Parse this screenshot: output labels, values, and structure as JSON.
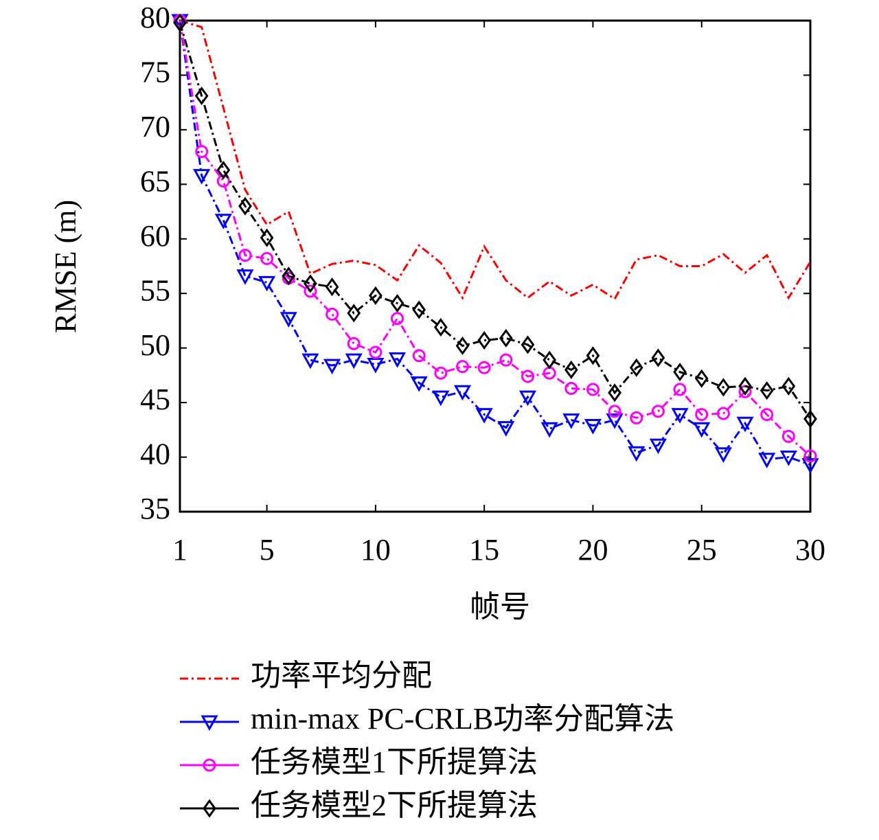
{
  "chart_data": {
    "type": "line",
    "y_label": "RMSE (m)",
    "x_label": "帧号",
    "x": [
      1,
      2,
      3,
      4,
      5,
      6,
      7,
      8,
      9,
      10,
      11,
      12,
      13,
      14,
      15,
      16,
      17,
      18,
      19,
      20,
      21,
      22,
      23,
      24,
      25,
      26,
      27,
      28,
      29,
      30
    ],
    "xlim": [
      1,
      30
    ],
    "xticks": [
      1,
      5,
      10,
      15,
      20,
      25,
      30
    ],
    "ylim": [
      35,
      80
    ],
    "yticks": [
      35,
      40,
      45,
      50,
      55,
      60,
      65,
      70,
      75,
      80
    ],
    "legend": "bottom",
    "series": [
      {
        "name": "功率平均分配",
        "color": "#ff0000",
        "marker": "none",
        "values": [
          80,
          79.4,
          72,
          64.5,
          61.3,
          62.5,
          56.8,
          57.7,
          58,
          57.6,
          56.2,
          59.4,
          57.8,
          54.6,
          59.3,
          56.2,
          54.6,
          56.1,
          54.8,
          55.8,
          54.5,
          58.1,
          58.5,
          57.5,
          57.5,
          58.6,
          56.9,
          58.5,
          54.6,
          57.9
        ]
      },
      {
        "name": "min-max PC-CRLB功率分配算法",
        "color": "#0000ff",
        "marker": "triangle-down",
        "values": [
          80,
          65.8,
          61.7,
          56.6,
          56.0,
          52.7,
          48.9,
          48.4,
          48.9,
          48.5,
          49.0,
          46.8,
          45.5,
          46.0,
          43.9,
          42.7,
          45.5,
          42.6,
          43.4,
          42.9,
          43.4,
          40.4,
          41.1,
          43.9,
          42.6,
          40.3,
          43.1,
          39.8,
          40.0,
          39.3
        ]
      },
      {
        "name": "任务模型1下所提算法",
        "color": "#ff00ff",
        "marker": "circle",
        "values": [
          80,
          68,
          65.3,
          58.5,
          58.2,
          56.4,
          55.2,
          53.1,
          50.4,
          49.6,
          52.7,
          49.3,
          47.7,
          48.3,
          48.2,
          48.9,
          47.4,
          47.7,
          46.3,
          46.2,
          44.2,
          43.6,
          44.2,
          46.2,
          43.9,
          44.0,
          46.0,
          43.9,
          41.9,
          40.1
        ]
      },
      {
        "name": "任务模型2下所提算法",
        "color": "#000000",
        "marker": "diamond",
        "values": [
          79.8,
          73.1,
          66.3,
          63.0,
          60.1,
          56.6,
          55.9,
          55.6,
          53.2,
          54.8,
          54.1,
          53.5,
          51.9,
          50.2,
          50.7,
          50.9,
          50.3,
          48.9,
          48.0,
          49.3,
          45.9,
          48.2,
          49.1,
          47.8,
          47.2,
          46.4,
          46.5,
          46.1,
          46.5,
          43.5
        ]
      }
    ]
  }
}
